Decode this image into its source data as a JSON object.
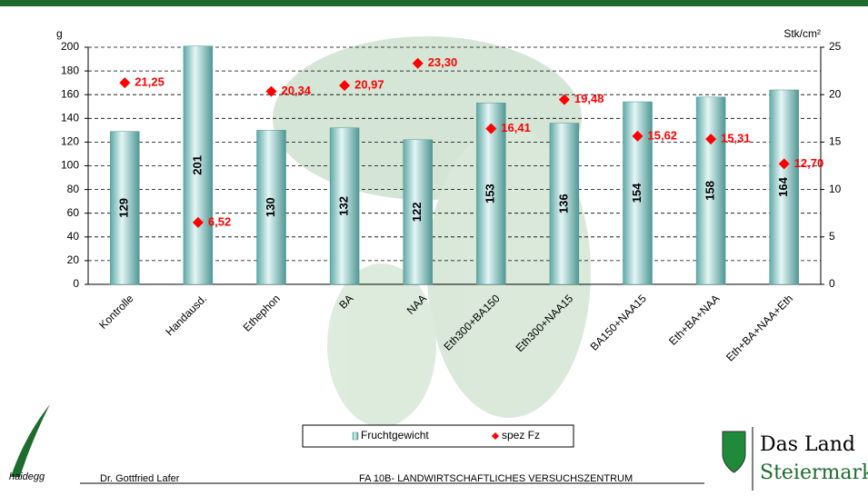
{
  "chart_data": {
    "type": "bar",
    "y_label": "g",
    "y2_label": "Stk/cm²",
    "categories": [
      "Kontrolle",
      "Handausd.",
      "Ethephon",
      "BA",
      "NAA",
      "Eth300+BA150",
      "Eth300+NAA15",
      "BA150+NAA15",
      "Eth+BA+NAA",
      "Eth+BA+NAA+Eth"
    ],
    "series": [
      {
        "name": "Fruchtgewicht",
        "color": "#8fd0cc",
        "values": [
          129,
          201,
          130,
          132,
          122,
          153,
          136,
          154,
          158,
          164
        ]
      },
      {
        "name": "spez Fz",
        "color": "#ff0000",
        "axis": "y2",
        "values": [
          21.25,
          6.52,
          20.34,
          20.97,
          23.3,
          16.41,
          19.48,
          15.62,
          15.31,
          12.7
        ],
        "value_labels": [
          "21,25",
          "6,52",
          "20,34",
          "20,97",
          "23,30",
          "16,41",
          "19,48",
          "15,62",
          "15,31",
          "12,70"
        ]
      }
    ],
    "ylim": [
      0,
      200
    ],
    "yticks": [
      0,
      20,
      40,
      60,
      80,
      100,
      120,
      140,
      160,
      180,
      200
    ],
    "y2lim": [
      0,
      25
    ],
    "y2ticks": [
      0,
      5,
      10,
      15,
      20,
      25
    ],
    "grid": true,
    "legend": "bottom"
  },
  "footer": {
    "logo_text": "haidegg",
    "author": "Dr. Gottfried Lafer",
    "institution": "FA 10B- LANDWIRTSCHAFTLICHES VERSUCHSZENTRUM",
    "state_logo": [
      "Das Land",
      "Steiermark"
    ]
  }
}
